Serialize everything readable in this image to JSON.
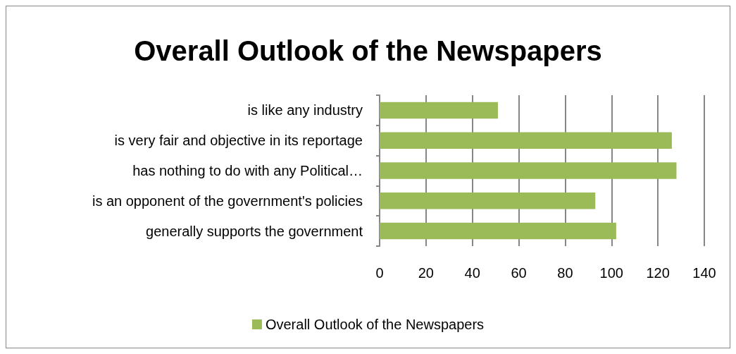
{
  "chart_data": {
    "type": "bar",
    "orientation": "horizontal",
    "title": "Overall Outlook of the Newspapers",
    "categories": [
      "is like any industry",
      "is very fair and objective in its reportage",
      "has nothing to do with any Political…",
      "is an opponent of the government's policies",
      "generally supports the government"
    ],
    "series": [
      {
        "name": "Overall Outlook of the Newspapers",
        "color": "#9bbb59",
        "values": [
          51,
          126,
          128,
          93,
          102
        ]
      }
    ],
    "xlim": [
      0,
      140
    ],
    "xticks": [
      0,
      20,
      40,
      60,
      80,
      100,
      120,
      140
    ],
    "grid": "x",
    "legend": "bottom"
  }
}
